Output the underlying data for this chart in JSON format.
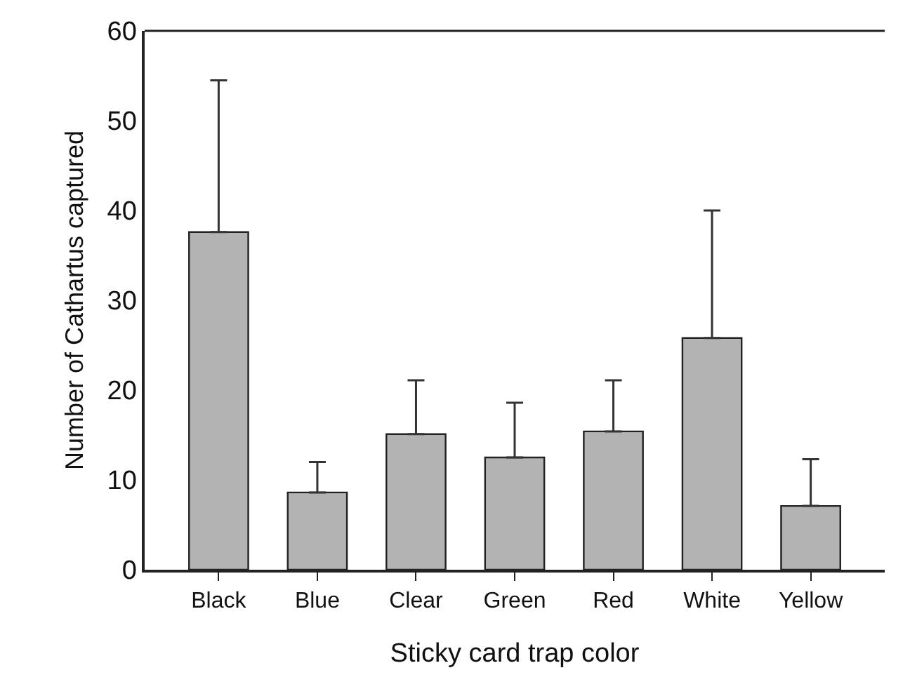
{
  "chart_data": {
    "type": "bar",
    "xlabel": "Sticky card trap color",
    "ylabel": "Number of Cathartus captured",
    "categories": [
      "Black",
      "Blue",
      "Clear",
      "Green",
      "Red",
      "White",
      "Yellow"
    ],
    "values": [
      37.6,
      8.6,
      15.1,
      12.5,
      15.4,
      25.8,
      7.1
    ],
    "errors": [
      [
        37.6,
        54.5
      ],
      [
        8.6,
        12.0
      ],
      [
        15.1,
        21.1
      ],
      [
        12.5,
        18.6
      ],
      [
        15.4,
        21.1
      ],
      [
        25.8,
        40.0
      ],
      [
        7.1,
        12.3
      ]
    ],
    "color": "#b3b3b3",
    "ylim": [
      0,
      60
    ],
    "yticks": [
      0,
      10,
      20,
      30,
      40,
      50,
      60
    ],
    "grid": false
  }
}
